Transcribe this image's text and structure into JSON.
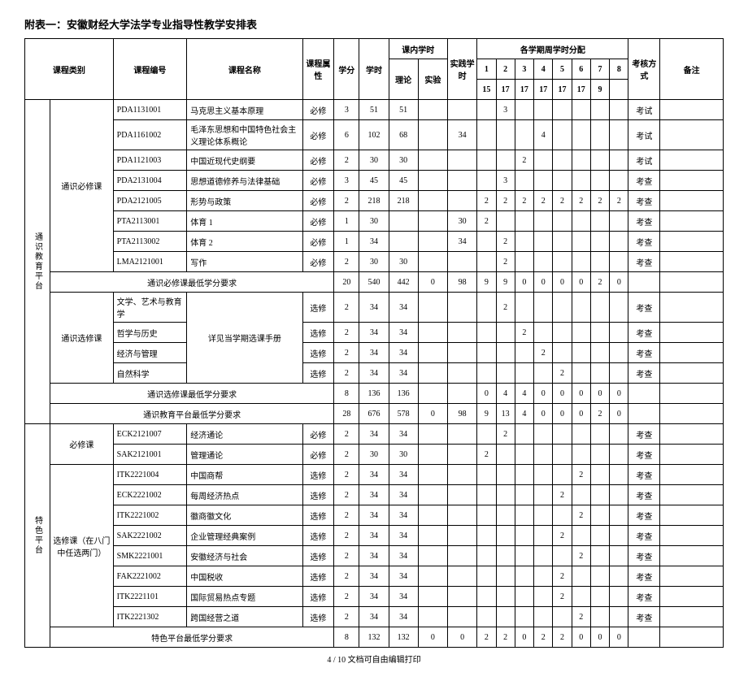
{
  "title": "附表一：安徽财经大学法学专业指导性教学安排表",
  "footer": "4 / 10 文档可自由编辑打印",
  "headers": {
    "category": "课程类别",
    "code": "课程编号",
    "name": "课程名称",
    "attribute": "课程属性",
    "credits": "学分",
    "hours": "学时",
    "in_class": "课内学时",
    "theory": "理论",
    "lab": "实验",
    "practice": "实践学时",
    "weekly": "各学期周学时分配",
    "assess": "考核方式",
    "note": "备注",
    "sem_nums": [
      "1",
      "2",
      "3",
      "4",
      "5",
      "6",
      "7",
      "8"
    ],
    "sem_weeks": [
      "15",
      "17",
      "17",
      "17",
      "17",
      "17",
      "9",
      ""
    ]
  },
  "groups": [
    {
      "platform": "通识教育平台",
      "sections": [
        {
          "label": "通识必修课",
          "rows": [
            {
              "code": "PDA1131001",
              "name": "马克思主义基本原理",
              "attr": "必修",
              "credits": "3",
              "hours": "51",
              "theory": "51",
              "lab": "",
              "prac": "",
              "sem": [
                "",
                "3",
                "",
                "",
                "",
                "",
                "",
                ""
              ],
              "assess": "考试"
            },
            {
              "code": "PDA1161002",
              "name": "毛泽东思想和中国特色社会主义理论体系概论",
              "attr": "必修",
              "credits": "6",
              "hours": "102",
              "theory": "68",
              "lab": "",
              "prac": "34",
              "sem": [
                "",
                "",
                "",
                "4",
                "",
                "",
                "",
                ""
              ],
              "assess": "考试"
            },
            {
              "code": "PDA1121003",
              "name": "中国近现代史纲要",
              "attr": "必修",
              "credits": "2",
              "hours": "30",
              "theory": "30",
              "lab": "",
              "prac": "",
              "sem": [
                "",
                "",
                "2",
                "",
                "",
                "",
                "",
                ""
              ],
              "assess": "考试"
            },
            {
              "code": "PDA2131004",
              "name": "思想道德修养与法律基础",
              "attr": "必修",
              "credits": "3",
              "hours": "45",
              "theory": "45",
              "lab": "",
              "prac": "",
              "sem": [
                "",
                "3",
                "",
                "",
                "",
                "",
                "",
                ""
              ],
              "assess": "考查"
            },
            {
              "code": "PDA2121005",
              "name": "形势与政策",
              "attr": "必修",
              "credits": "2",
              "hours": "218",
              "theory": "218",
              "lab": "",
              "prac": "",
              "sem": [
                "2",
                "2",
                "2",
                "2",
                "2",
                "2",
                "2",
                "2"
              ],
              "assess": "考查"
            },
            {
              "code": "PTA2113001",
              "name": "体育 1",
              "attr": "必修",
              "credits": "1",
              "hours": "30",
              "theory": "",
              "lab": "",
              "prac": "30",
              "sem": [
                "2",
                "",
                "",
                "",
                "",
                "",
                "",
                ""
              ],
              "assess": "考查"
            },
            {
              "code": "PTA2113002",
              "name": "体育 2",
              "attr": "必修",
              "credits": "1",
              "hours": "34",
              "theory": "",
              "lab": "",
              "prac": "34",
              "sem": [
                "",
                "2",
                "",
                "",
                "",
                "",
                "",
                ""
              ],
              "assess": "考查"
            },
            {
              "code": "LMA2121001",
              "name": "写作",
              "attr": "必修",
              "credits": "2",
              "hours": "30",
              "theory": "30",
              "lab": "",
              "prac": "",
              "sem": [
                "",
                "2",
                "",
                "",
                "",
                "",
                "",
                ""
              ],
              "assess": "考查"
            }
          ],
          "subtotal": {
            "label": "通识必修课最低学分要求",
            "credits": "20",
            "hours": "540",
            "theory": "442",
            "lab": "0",
            "prac": "98",
            "sem": [
              "9",
              "9",
              "0",
              "0",
              "0",
              "0",
              "2",
              "0"
            ]
          }
        },
        {
          "label": "通识选修课",
          "name_shared": "详见当学期选课手册",
          "rows": [
            {
              "code": "文学、艺术与教育学",
              "attr": "选修",
              "credits": "2",
              "hours": "34",
              "theory": "34",
              "lab": "",
              "prac": "",
              "sem": [
                "",
                "2",
                "",
                "",
                "",
                "",
                "",
                ""
              ],
              "assess": "考查"
            },
            {
              "code": "哲学与历史",
              "attr": "选修",
              "credits": "2",
              "hours": "34",
              "theory": "34",
              "lab": "",
              "prac": "",
              "sem": [
                "",
                "",
                "2",
                "",
                "",
                "",
                "",
                ""
              ],
              "assess": "考查"
            },
            {
              "code": "经济与管理",
              "attr": "选修",
              "credits": "2",
              "hours": "34",
              "theory": "34",
              "lab": "",
              "prac": "",
              "sem": [
                "",
                "",
                "",
                "2",
                "",
                "",
                "",
                ""
              ],
              "assess": "考查"
            },
            {
              "code": "自然科学",
              "attr": "选修",
              "credits": "2",
              "hours": "34",
              "theory": "34",
              "lab": "",
              "prac": "",
              "sem": [
                "",
                "",
                "",
                "",
                "2",
                "",
                "",
                ""
              ],
              "assess": "考查"
            }
          ],
          "subtotal": {
            "label": "通识选修课最低学分要求",
            "credits": "8",
            "hours": "136",
            "theory": "136",
            "lab": "",
            "prac": "",
            "sem": [
              "0",
              "4",
              "4",
              "0",
              "0",
              "0",
              "0",
              "0"
            ]
          }
        }
      ],
      "platform_total": {
        "label": "通识教育平台最低学分要求",
        "credits": "28",
        "hours": "676",
        "theory": "578",
        "lab": "0",
        "prac": "98",
        "sem": [
          "9",
          "13",
          "4",
          "0",
          "0",
          "0",
          "2",
          "0"
        ]
      }
    },
    {
      "platform": "特色平台",
      "sections": [
        {
          "label": "必修课",
          "rows": [
            {
              "code": "ECK2121007",
              "name": "经济通论",
              "attr": "必修",
              "credits": "2",
              "hours": "34",
              "theory": "34",
              "lab": "",
              "prac": "",
              "sem": [
                "",
                "2",
                "",
                "",
                "",
                "",
                "",
                ""
              ],
              "assess": "考查"
            },
            {
              "code": "SAK2121001",
              "name": "管理通论",
              "attr": "必修",
              "credits": "2",
              "hours": "30",
              "theory": "30",
              "lab": "",
              "prac": "",
              "sem": [
                "2",
                "",
                "",
                "",
                "",
                "",
                "",
                ""
              ],
              "assess": "考查"
            }
          ]
        },
        {
          "label": "选修课（在八门中任选两门）",
          "rows": [
            {
              "code": "ITK2221004",
              "name": "中国商帮",
              "attr": "选修",
              "credits": "2",
              "hours": "34",
              "theory": "34",
              "lab": "",
              "prac": "",
              "sem": [
                "",
                "",
                "",
                "",
                "",
                "2",
                "",
                ""
              ],
              "assess": "考查"
            },
            {
              "code": "ECK2221002",
              "name": "每周经济热点",
              "attr": "选修",
              "credits": "2",
              "hours": "34",
              "theory": "34",
              "lab": "",
              "prac": "",
              "sem": [
                "",
                "",
                "",
                "",
                "2",
                "",
                "",
                ""
              ],
              "assess": "考查"
            },
            {
              "code": "ITK2221002",
              "name": "徽商徽文化",
              "attr": "选修",
              "credits": "2",
              "hours": "34",
              "theory": "34",
              "lab": "",
              "prac": "",
              "sem": [
                "",
                "",
                "",
                "",
                "",
                "2",
                "",
                ""
              ],
              "assess": "考查"
            },
            {
              "code": "SAK2221002",
              "name": "企业管理经典案例",
              "attr": "选修",
              "credits": "2",
              "hours": "34",
              "theory": "34",
              "lab": "",
              "prac": "",
              "sem": [
                "",
                "",
                "",
                "",
                "2",
                "",
                "",
                ""
              ],
              "assess": "考查"
            },
            {
              "code": "SMK2221001",
              "name": "安徽经济与社会",
              "attr": "选修",
              "credits": "2",
              "hours": "34",
              "theory": "34",
              "lab": "",
              "prac": "",
              "sem": [
                "",
                "",
                "",
                "",
                "",
                "2",
                "",
                ""
              ],
              "assess": "考查"
            },
            {
              "code": "FAK2221002",
              "name": "中国税收",
              "attr": "选修",
              "credits": "2",
              "hours": "34",
              "theory": "34",
              "lab": "",
              "prac": "",
              "sem": [
                "",
                "",
                "",
                "",
                "2",
                "",
                "",
                ""
              ],
              "assess": "考查"
            },
            {
              "code": "ITK2221101",
              "name": "国际贸易热点专题",
              "attr": "选修",
              "credits": "2",
              "hours": "34",
              "theory": "34",
              "lab": "",
              "prac": "",
              "sem": [
                "",
                "",
                "",
                "",
                "2",
                "",
                "",
                ""
              ],
              "assess": "考查"
            },
            {
              "code": "ITK2221302",
              "name": "跨国经营之道",
              "attr": "选修",
              "credits": "2",
              "hours": "34",
              "theory": "34",
              "lab": "",
              "prac": "",
              "sem": [
                "",
                "",
                "",
                "",
                "",
                "2",
                "",
                ""
              ],
              "assess": "考查"
            }
          ]
        }
      ],
      "platform_total": {
        "label": "特色平台最低学分要求",
        "credits": "8",
        "hours": "132",
        "theory": "132",
        "lab": "0",
        "prac": "0",
        "sem": [
          "2",
          "2",
          "0",
          "2",
          "2",
          "0",
          "0",
          "0"
        ]
      }
    }
  ]
}
